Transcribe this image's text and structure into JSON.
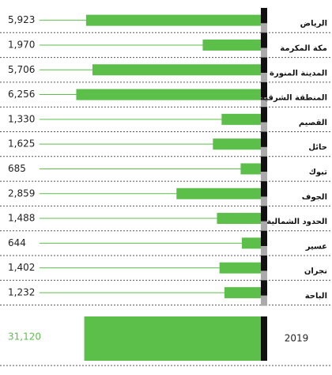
{
  "chart_data": {
    "type": "bar",
    "orientation": "horizontal",
    "categories": [
      "الرياض",
      "مكة المكرمة",
      "المدينة المنورة",
      "المنطقة الشرقية",
      "القصيم",
      "حائل",
      "تبوك",
      "الجوف",
      "الحدود الشمالية",
      "عسير",
      "نجران",
      "الباحة"
    ],
    "values": [
      5923,
      1970,
      5706,
      6256,
      1330,
      1625,
      685,
      2859,
      1488,
      644,
      1402,
      1232
    ],
    "value_labels": [
      "5,923",
      "1,970",
      "5,706",
      "6,256",
      "1,330",
      "1,625",
      "685",
      "2,859",
      "1,488",
      "644",
      "1,402",
      "1,232"
    ],
    "color": "#5cbf4a",
    "xlim": [
      0,
      7500
    ],
    "total": {
      "category": "2019",
      "value": 31120,
      "value_label": "31,120",
      "color": "#5cbf4a",
      "xlim": [
        0,
        39000
      ]
    }
  }
}
